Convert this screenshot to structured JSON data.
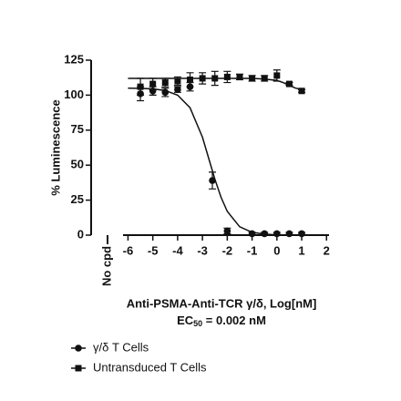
{
  "chart_data": {
    "type": "dose-response",
    "y_label": "% Luminescence",
    "x_label": "Anti-PSMA-Anti-TCR γ/δ, Log[nM]",
    "annotation": {
      "prefix": "EC",
      "subscript": "50",
      "suffix": " = 0.002 nM"
    },
    "no_cpd_label": "No cpd",
    "xlim": [
      -6.2,
      2.1
    ],
    "xticks": [
      -6,
      -5,
      -4,
      -3,
      -2,
      -1,
      0,
      1,
      2
    ],
    "ylim": [
      0,
      125
    ],
    "yticks": [
      0,
      25,
      50,
      75,
      100,
      125
    ],
    "legend": "bottom-left",
    "series": [
      {
        "name": "γ/δ T Cells",
        "marker": "circle",
        "color": "#111111",
        "x": [
          -5.5,
          -5,
          -4.5,
          -4,
          -3.5,
          -2.6,
          -2,
          -1,
          -0.5,
          0,
          0.5,
          1
        ],
        "values": [
          101,
          103,
          102,
          104,
          106,
          39,
          3,
          1,
          1,
          1,
          1,
          1
        ],
        "errors": [
          5,
          3,
          3,
          2,
          3,
          6,
          2,
          1,
          1,
          1,
          1,
          1
        ],
        "fit": {
          "x": [
            -6,
            -5.5,
            -5,
            -4.5,
            -4,
            -3.5,
            -3,
            -2.7,
            -2.5,
            -2.25,
            -2,
            -1.5,
            -1,
            -0.5,
            0,
            0.5,
            1
          ],
          "values": [
            105,
            104.8,
            104.5,
            103.3,
            100,
            91,
            70,
            52,
            40,
            27,
            17,
            6,
            2,
            0.7,
            0.2,
            0.1,
            0
          ]
        }
      },
      {
        "name": "Untransduced T Cells",
        "marker": "square",
        "color": "#111111",
        "x": [
          -5.5,
          -5,
          -4.5,
          -4,
          -3.5,
          -3,
          -2.5,
          -2,
          -1.5,
          -1,
          -0.5,
          0,
          0.5,
          1
        ],
        "values": [
          106,
          108,
          109,
          110,
          111,
          112,
          112,
          113,
          113,
          112,
          112,
          114,
          108,
          103
        ],
        "errors": [
          6,
          4,
          3,
          3,
          5,
          4,
          5,
          4,
          2,
          2,
          2,
          4,
          1,
          1
        ],
        "fit": {
          "x": [
            -6,
            -5,
            -4,
            -3,
            -2,
            -1,
            -0.5,
            0,
            0.25,
            0.5,
            0.75,
            1
          ],
          "values": [
            112,
            112,
            112,
            112,
            112,
            112,
            111.5,
            110.5,
            109,
            107,
            105,
            104
          ]
        }
      }
    ]
  }
}
